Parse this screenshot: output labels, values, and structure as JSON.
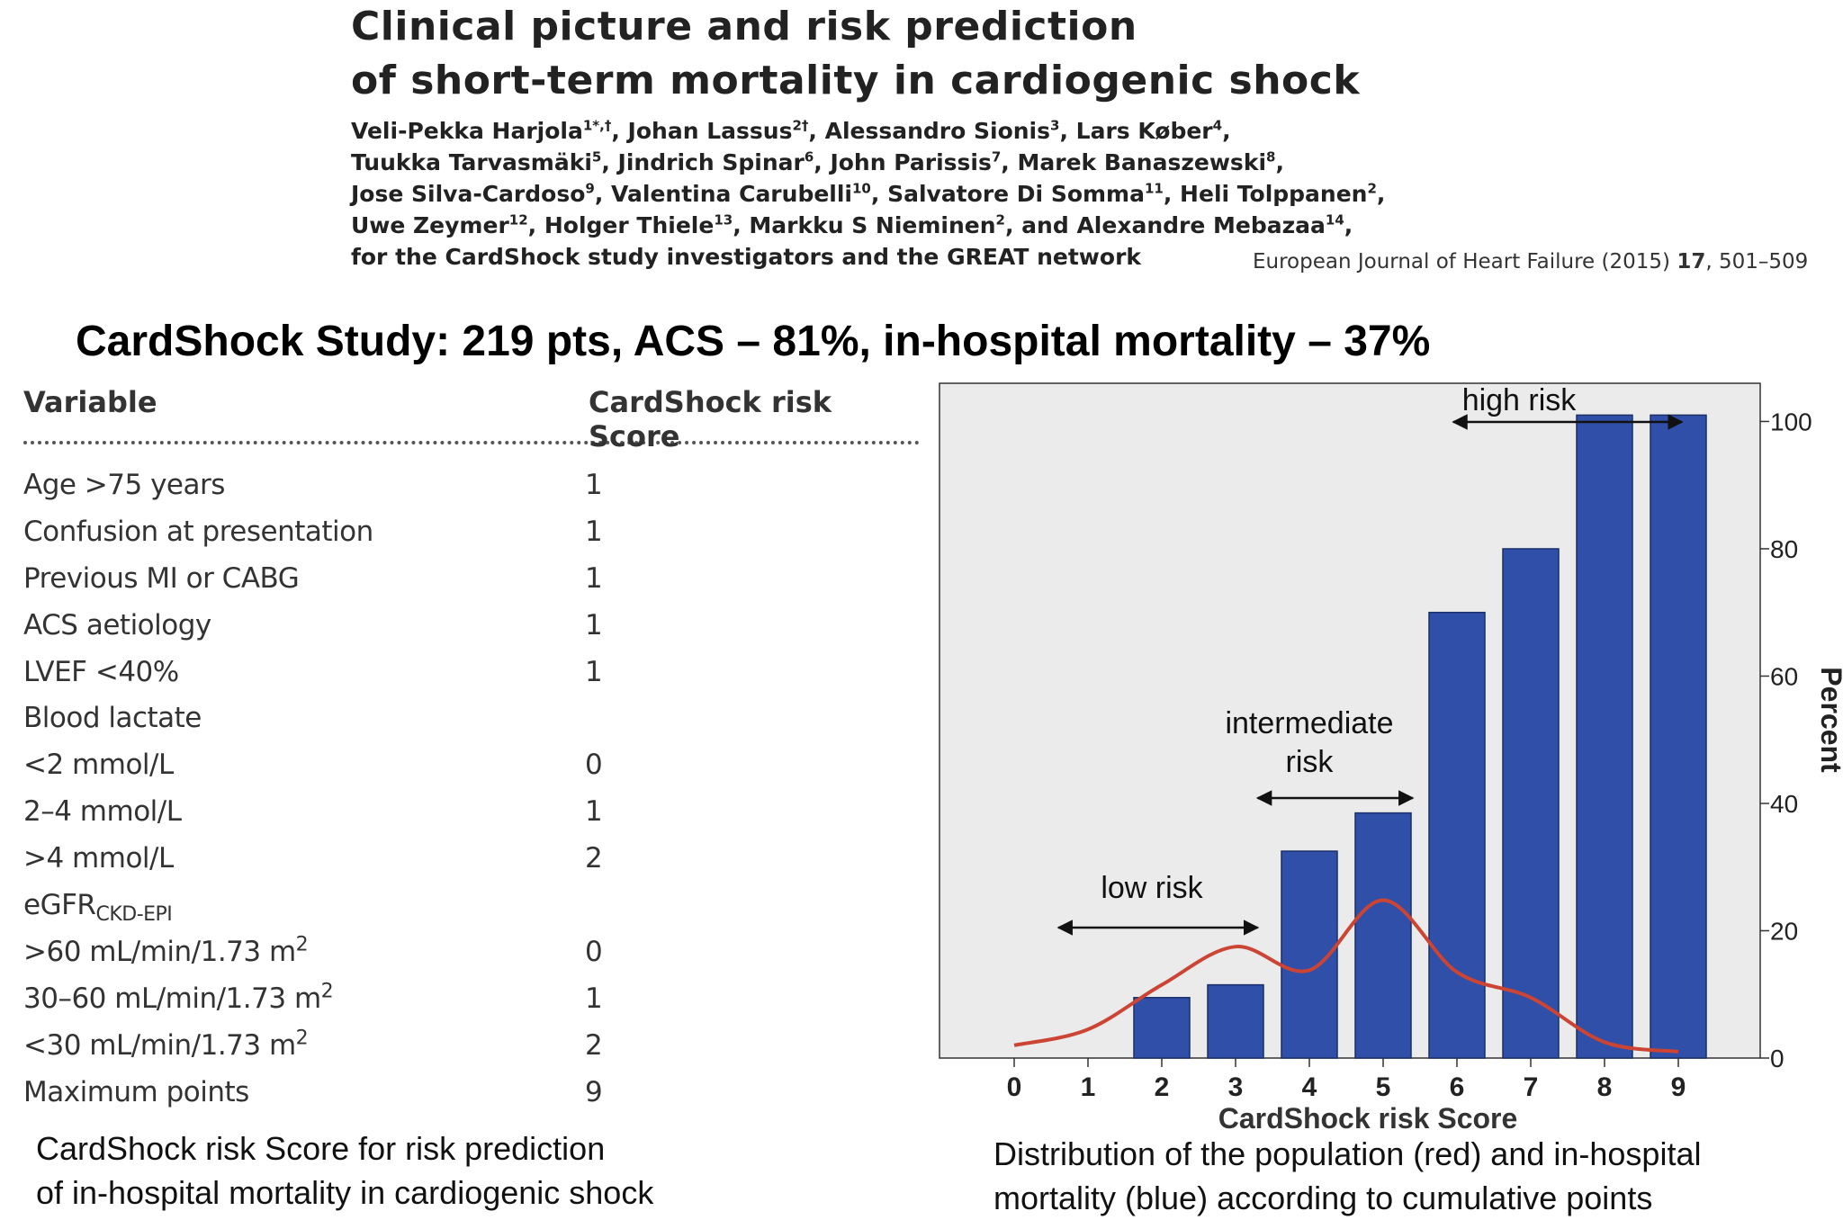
{
  "paper": {
    "title_line1": "Clinical picture and risk prediction",
    "title_line2": "of short-term mortality in cardiogenic shock",
    "authors": [
      [
        {
          "t": "Veli-Pekka Harjola",
          "s": "1*,†"
        },
        {
          "t": ", Johan Lassus",
          "s": "2†"
        },
        {
          "t": ", Alessandro Sionis",
          "s": "3"
        },
        {
          "t": ", Lars Køber",
          "s": "4"
        },
        {
          "t": ",",
          "s": ""
        }
      ],
      [
        {
          "t": "Tuukka Tarvasmäki",
          "s": "5"
        },
        {
          "t": ", Jindrich Spinar",
          "s": "6"
        },
        {
          "t": ", John Parissis",
          "s": "7"
        },
        {
          "t": ", Marek Banaszewski",
          "s": "8"
        },
        {
          "t": ",",
          "s": ""
        }
      ],
      [
        {
          "t": "Jose Silva-Cardoso",
          "s": "9"
        },
        {
          "t": ", Valentina Carubelli",
          "s": "10"
        },
        {
          "t": ", Salvatore Di Somma",
          "s": "11"
        },
        {
          "t": ", Heli Tolppanen",
          "s": "2"
        },
        {
          "t": ",",
          "s": ""
        }
      ],
      [
        {
          "t": "Uwe Zeymer",
          "s": "12"
        },
        {
          "t": ", Holger Thiele",
          "s": "13"
        },
        {
          "t": ", Markku S Nieminen",
          "s": "2"
        },
        {
          "t": ", and Alexandre Mebazaa",
          "s": "14"
        },
        {
          "t": ",",
          "s": ""
        }
      ],
      [
        {
          "t": "for the CardShock study investigators and the GREAT network",
          "s": ""
        }
      ]
    ],
    "journal_name": "European Journal of Heart Failure (2015) ",
    "journal_volume": "17",
    "journal_pages": ", 501–509"
  },
  "study_summary": "CardShock Study: 219 pts, ACS – 81%, in-hospital mortality – 37%",
  "table": {
    "header_variable": "Variable",
    "header_score": "CardShock risk Score",
    "rows": [
      {
        "variable": "Age >75 years",
        "points": "1"
      },
      {
        "variable": "Confusion at presentation",
        "points": "1"
      },
      {
        "variable": "Previous MI or CABG",
        "points": "1"
      },
      {
        "variable": "ACS aetiology",
        "points": "1"
      },
      {
        "variable": "LVEF <40%",
        "points": "1"
      },
      {
        "variable": "Blood lactate",
        "points": ""
      },
      {
        "variable": "<2 mmol/L",
        "points": "0"
      },
      {
        "variable": "2–4 mmol/L",
        "points": "1"
      },
      {
        "variable": ">4 mmol/L",
        "points": "2"
      },
      {
        "variable": "eGFR",
        "sub": "CKD-EPI",
        "points": ""
      },
      {
        "variable": ">60 mL/min/1.73 m",
        "sup": "2",
        "points": "0"
      },
      {
        "variable": "30–60 mL/min/1.73 m",
        "sup": "2",
        "points": "1"
      },
      {
        "variable": "<30 mL/min/1.73 m",
        "sup": "2",
        "points": "2"
      },
      {
        "variable": "Maximum points",
        "points": "9"
      }
    ]
  },
  "caption_left_line1": "CardShock risk Score for risk prediction",
  "caption_left_line2": "of in-hospital mortality in cardiogenic shock",
  "caption_right_line1": "Distribution of the population (red) and in-hospital",
  "caption_right_line2": "mortality (blue) according to cumulative points",
  "chart_data": {
    "type": "bar",
    "categories": [
      "0",
      "1",
      "2",
      "3",
      "4",
      "5",
      "6",
      "7",
      "8",
      "9"
    ],
    "series": [
      {
        "values": [
          0,
          0,
          9.5,
          11.5,
          32.5,
          38.5,
          70,
          80,
          101,
          101
        ],
        "color": "#2f4fa8"
      },
      {
        "type": "line",
        "values": [
          2,
          4.5,
          11.5,
          17.5,
          13.8,
          24.8,
          13.5,
          9.5,
          2.5,
          1
        ],
        "color": "#cc4433"
      }
    ],
    "xlabel": "CardShock risk Score",
    "ylabel": "Percent",
    "ylim": [
      0,
      106
    ],
    "yticks": [
      0,
      20,
      40,
      60,
      80,
      100
    ],
    "y_axis_side": "right",
    "background": "#ebebeb",
    "annotations": [
      {
        "text": "high risk",
        "x_from": 6,
        "x_to": 9
      },
      {
        "text_line1": "intermediate",
        "text_line2": "risk",
        "x_from": 3.3,
        "x_to": 5.4
      },
      {
        "text": "low risk",
        "x_from": 0.6,
        "x_to": 3.3
      }
    ]
  }
}
